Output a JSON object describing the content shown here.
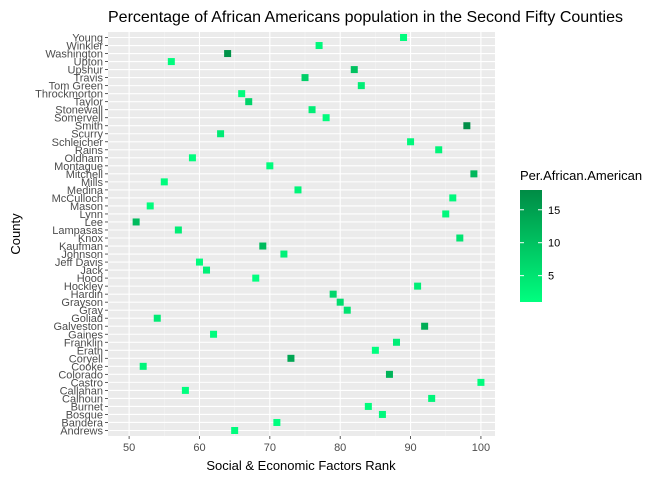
{
  "chart_data": {
    "type": "scatter",
    "title": "Percentage of African Americans population in the Second Fifty Counties",
    "xlabel": "Social & Economic Factors Rank",
    "ylabel": "County",
    "xlim": [
      47,
      102
    ],
    "x_ticks": [
      50,
      60,
      70,
      80,
      90,
      100
    ],
    "grid": true,
    "legend": {
      "title": "Per.African.American",
      "position": "right",
      "range": [
        1,
        18
      ],
      "ticks": [
        5,
        10,
        15
      ],
      "low_color": "#00ff7f",
      "high_color": "#008b45"
    },
    "categories": [
      "Andrews",
      "Bandera",
      "Bosque",
      "Burnet",
      "Calhoun",
      "Callahan",
      "Castro",
      "Colorado",
      "Cooke",
      "Coryell",
      "Erath",
      "Franklin",
      "Gaines",
      "Galveston",
      "Goliad",
      "Gray",
      "Grayson",
      "Hardin",
      "Hockley",
      "Hood",
      "Jack",
      "Jeff Davis",
      "Johnson",
      "Kaufman",
      "Knox",
      "Lampasas",
      "Lee",
      "Lynn",
      "Mason",
      "McCulloch",
      "Medina",
      "Mills",
      "Mitchell",
      "Montague",
      "Oldham",
      "Rains",
      "Schleicher",
      "Scurry",
      "Smith",
      "Somervell",
      "Stonewall",
      "Taylor",
      "Throckmorton",
      "Tom Green",
      "Travis",
      "Upshur",
      "Upton",
      "Washington",
      "Winkler",
      "Young"
    ],
    "points": [
      {
        "county": "Andrews",
        "x": 65,
        "y": 1.5
      },
      {
        "county": "Bandera",
        "x": 71,
        "y": 1.0
      },
      {
        "county": "Bosque",
        "x": 86,
        "y": 2.0
      },
      {
        "county": "Burnet",
        "x": 84,
        "y": 1.5
      },
      {
        "county": "Calhoun",
        "x": 93,
        "y": 2.5
      },
      {
        "county": "Callahan",
        "x": 58,
        "y": 1.0
      },
      {
        "county": "Castro",
        "x": 100,
        "y": 1.5
      },
      {
        "county": "Colorado",
        "x": 87,
        "y": 12.0
      },
      {
        "county": "Cooke",
        "x": 52,
        "y": 2.5
      },
      {
        "county": "Coryell",
        "x": 73,
        "y": 14.0
      },
      {
        "county": "Erath",
        "x": 85,
        "y": 1.0
      },
      {
        "county": "Franklin",
        "x": 88,
        "y": 3.5
      },
      {
        "county": "Gaines",
        "x": 62,
        "y": 1.5
      },
      {
        "county": "Galveston",
        "x": 92,
        "y": 13.0
      },
      {
        "county": "Goliad",
        "x": 54,
        "y": 4.0
      },
      {
        "county": "Gray",
        "x": 81,
        "y": 5.0
      },
      {
        "county": "Grayson",
        "x": 80,
        "y": 6.0
      },
      {
        "county": "Hardin",
        "x": 79,
        "y": 7.0
      },
      {
        "county": "Hockley",
        "x": 91,
        "y": 3.5
      },
      {
        "county": "Hood",
        "x": 68,
        "y": 1.0
      },
      {
        "county": "Jack",
        "x": 61,
        "y": 3.0
      },
      {
        "county": "Jeff Davis",
        "x": 60,
        "y": 1.5
      },
      {
        "county": "Johnson",
        "x": 72,
        "y": 3.0
      },
      {
        "county": "Kaufman",
        "x": 69,
        "y": 11.0
      },
      {
        "county": "Knox",
        "x": 97,
        "y": 5.0
      },
      {
        "county": "Lampasas",
        "x": 57,
        "y": 3.5
      },
      {
        "county": "Lee",
        "x": 51,
        "y": 11.0
      },
      {
        "county": "Lynn",
        "x": 95,
        "y": 2.0
      },
      {
        "county": "Mason",
        "x": 53,
        "y": 1.5
      },
      {
        "county": "McCulloch",
        "x": 96,
        "y": 2.0
      },
      {
        "county": "Medina",
        "x": 74,
        "y": 2.5
      },
      {
        "county": "Mills",
        "x": 55,
        "y": 1.5
      },
      {
        "county": "Mitchell",
        "x": 99,
        "y": 11.5
      },
      {
        "county": "Montague",
        "x": 70,
        "y": 1.5
      },
      {
        "county": "Oldham",
        "x": 59,
        "y": 1.5
      },
      {
        "county": "Rains",
        "x": 94,
        "y": 2.5
      },
      {
        "county": "Schleicher",
        "x": 90,
        "y": 2.0
      },
      {
        "county": "Scurry",
        "x": 63,
        "y": 4.0
      },
      {
        "county": "Smith",
        "x": 98,
        "y": 17.5
      },
      {
        "county": "Somervell",
        "x": 78,
        "y": 1.5
      },
      {
        "county": "Stonewall",
        "x": 76,
        "y": 3.5
      },
      {
        "county": "Taylor",
        "x": 67,
        "y": 7.5
      },
      {
        "county": "Throckmorton",
        "x": 66,
        "y": 1.5
      },
      {
        "county": "Tom Green",
        "x": 83,
        "y": 3.5
      },
      {
        "county": "Travis",
        "x": 75,
        "y": 8.0
      },
      {
        "county": "Upshur",
        "x": 82,
        "y": 10.0
      },
      {
        "county": "Upton",
        "x": 56,
        "y": 1.5
      },
      {
        "county": "Washington",
        "x": 64,
        "y": 17.0
      },
      {
        "county": "Winkler",
        "x": 77,
        "y": 2.0
      },
      {
        "county": "Young",
        "x": 89,
        "y": 1.5
      }
    ]
  }
}
